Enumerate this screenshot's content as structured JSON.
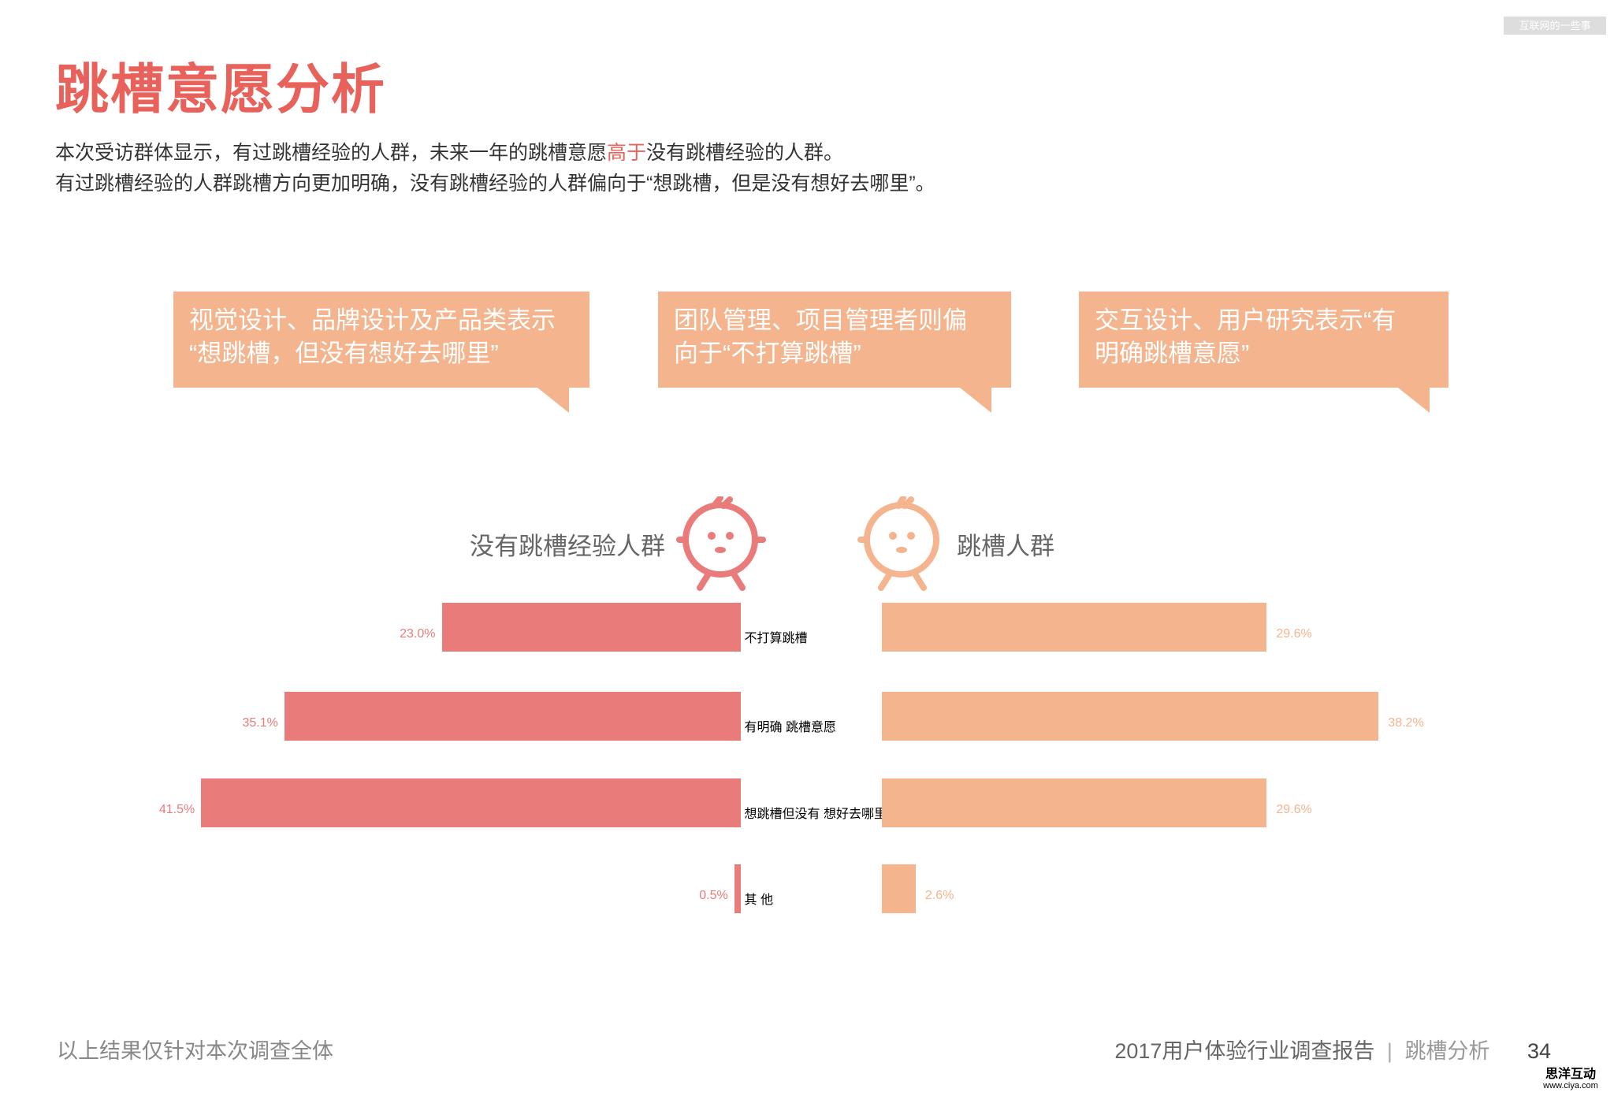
{
  "title": "跳槽意愿分析",
  "intro": {
    "line1": [
      "本次受访群体显示，有过跳槽经验的人群，未来一年的跳槽意愿",
      "高于",
      "没有跳槽经验的人群。"
    ],
    "line2": "有过跳槽经验的人群跳槽方向更加明确，没有跳槽经验的人群偏向于“想跳槽，但是没有想好去哪里”。"
  },
  "callouts": [
    "视觉设计、品牌设计及产品类表示\n“想跳槽，但没有想好去哪里”",
    "团队管理、项目管理者则偏\n向于“不打算跳槽”",
    "交互设计、用户研究表示“有\n明确跳槽意愿”"
  ],
  "chart_data": {
    "type": "bar",
    "categories": [
      "不打算跳槽",
      "有明确\n跳槽意愿",
      "想跳槽但没有\n想好去哪里",
      "其 他"
    ],
    "series": [
      {
        "name": "没有跳槽经验人群",
        "color": "#ea7b7b",
        "values": [
          23.0,
          35.1,
          41.5,
          0.5
        ],
        "value_labels": [
          "23.0%",
          "35.1%",
          "41.5%",
          "0.5%"
        ]
      },
      {
        "name": "跳槽人群",
        "color": "#f4b48e",
        "values": [
          29.6,
          38.2,
          29.6,
          2.6
        ],
        "value_labels": [
          "29.6%",
          "38.2%",
          "29.6%",
          "2.6%"
        ]
      }
    ]
  },
  "footer": {
    "note": "以上结果仅针对本次调查全体",
    "report": "2017用户体验行业调查报告",
    "section": "跳槽分析",
    "page": "34"
  },
  "watermarks": {
    "top": "互联网的一些事",
    "brand": "思洋互动",
    "site": "www.ciya.com"
  }
}
